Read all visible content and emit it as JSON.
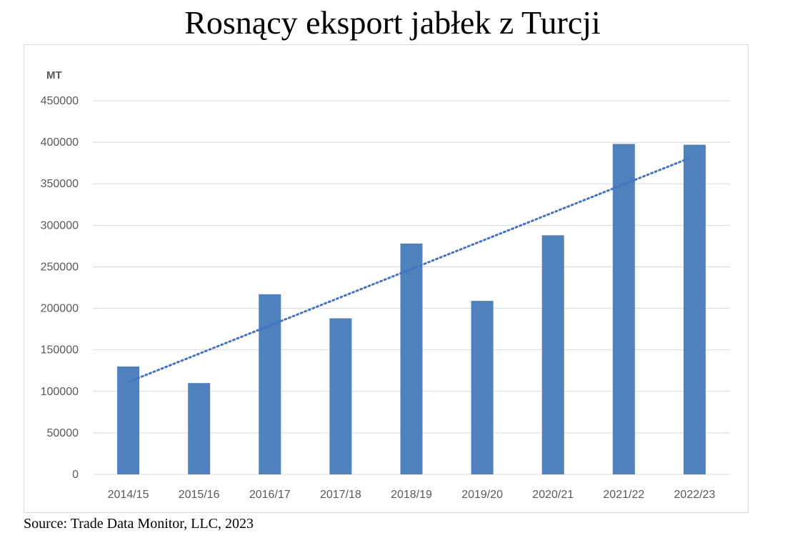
{
  "title": "Rosnący eksport jabłek z Turcji",
  "source": "Source: Trade Data Monitor, LLC, 2023",
  "chart_data": {
    "type": "bar",
    "title": "Rosnący eksport jabłek z Turcji",
    "ylabel": "MT",
    "xlabel": "",
    "categories": [
      "2014/15",
      "2015/16",
      "2016/17",
      "2017/18",
      "2018/19",
      "2019/20",
      "2020/21",
      "2021/22",
      "2022/23"
    ],
    "values": [
      130000,
      110000,
      217000,
      188000,
      278000,
      209000,
      288000,
      398000,
      397000
    ],
    "ylim": [
      0,
      450000
    ],
    "yticks": [
      0,
      50000,
      100000,
      150000,
      200000,
      250000,
      300000,
      350000,
      400000,
      450000
    ],
    "grid": true,
    "legend": "none",
    "trendline": {
      "style": "dotted",
      "type": "linear",
      "start": 112000,
      "end": 381000
    },
    "colors": {
      "bar": "#4f81bd",
      "trend": "#4472c4",
      "grid": "#d9d9d9",
      "text": "#595959"
    }
  }
}
